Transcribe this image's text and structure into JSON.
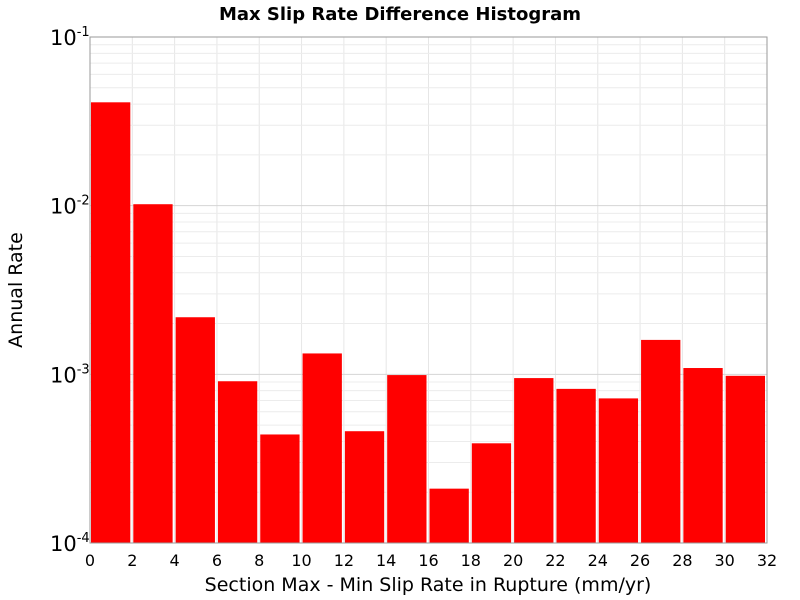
{
  "chart_data": {
    "type": "bar",
    "title": "Max Slip Rate Difference Histogram",
    "xlabel": "Section Max - Min Slip Rate in Rupture (mm/yr)",
    "ylabel": "Annual Rate",
    "xlim": [
      0,
      32
    ],
    "ylim": [
      0.0001,
      0.1
    ],
    "yscale": "log",
    "grid": true,
    "bar_color": "#ff0000",
    "bin_width": 2,
    "x": [
      1,
      3,
      5,
      7,
      9,
      11,
      13,
      15,
      17,
      19,
      21,
      23,
      25,
      27,
      29,
      31
    ],
    "values": [
      0.041,
      0.0102,
      0.00218,
      0.00091,
      0.00044,
      0.00133,
      0.00046,
      0.00099,
      0.00021,
      0.00039,
      0.00095,
      0.00082,
      0.00072,
      0.0016,
      0.00109,
      0.00098
    ],
    "x_ticks": [
      "0",
      "2",
      "4",
      "6",
      "8",
      "10",
      "12",
      "14",
      "16",
      "18",
      "20",
      "22",
      "24",
      "26",
      "28",
      "30",
      "32"
    ],
    "y_ticks": [
      {
        "base": "10",
        "exp": "-1",
        "value": 0.1
      },
      {
        "base": "10",
        "exp": "-2",
        "value": 0.01
      },
      {
        "base": "10",
        "exp": "-3",
        "value": 0.001
      },
      {
        "base": "10",
        "exp": "-4",
        "value": 0.0001
      }
    ]
  }
}
